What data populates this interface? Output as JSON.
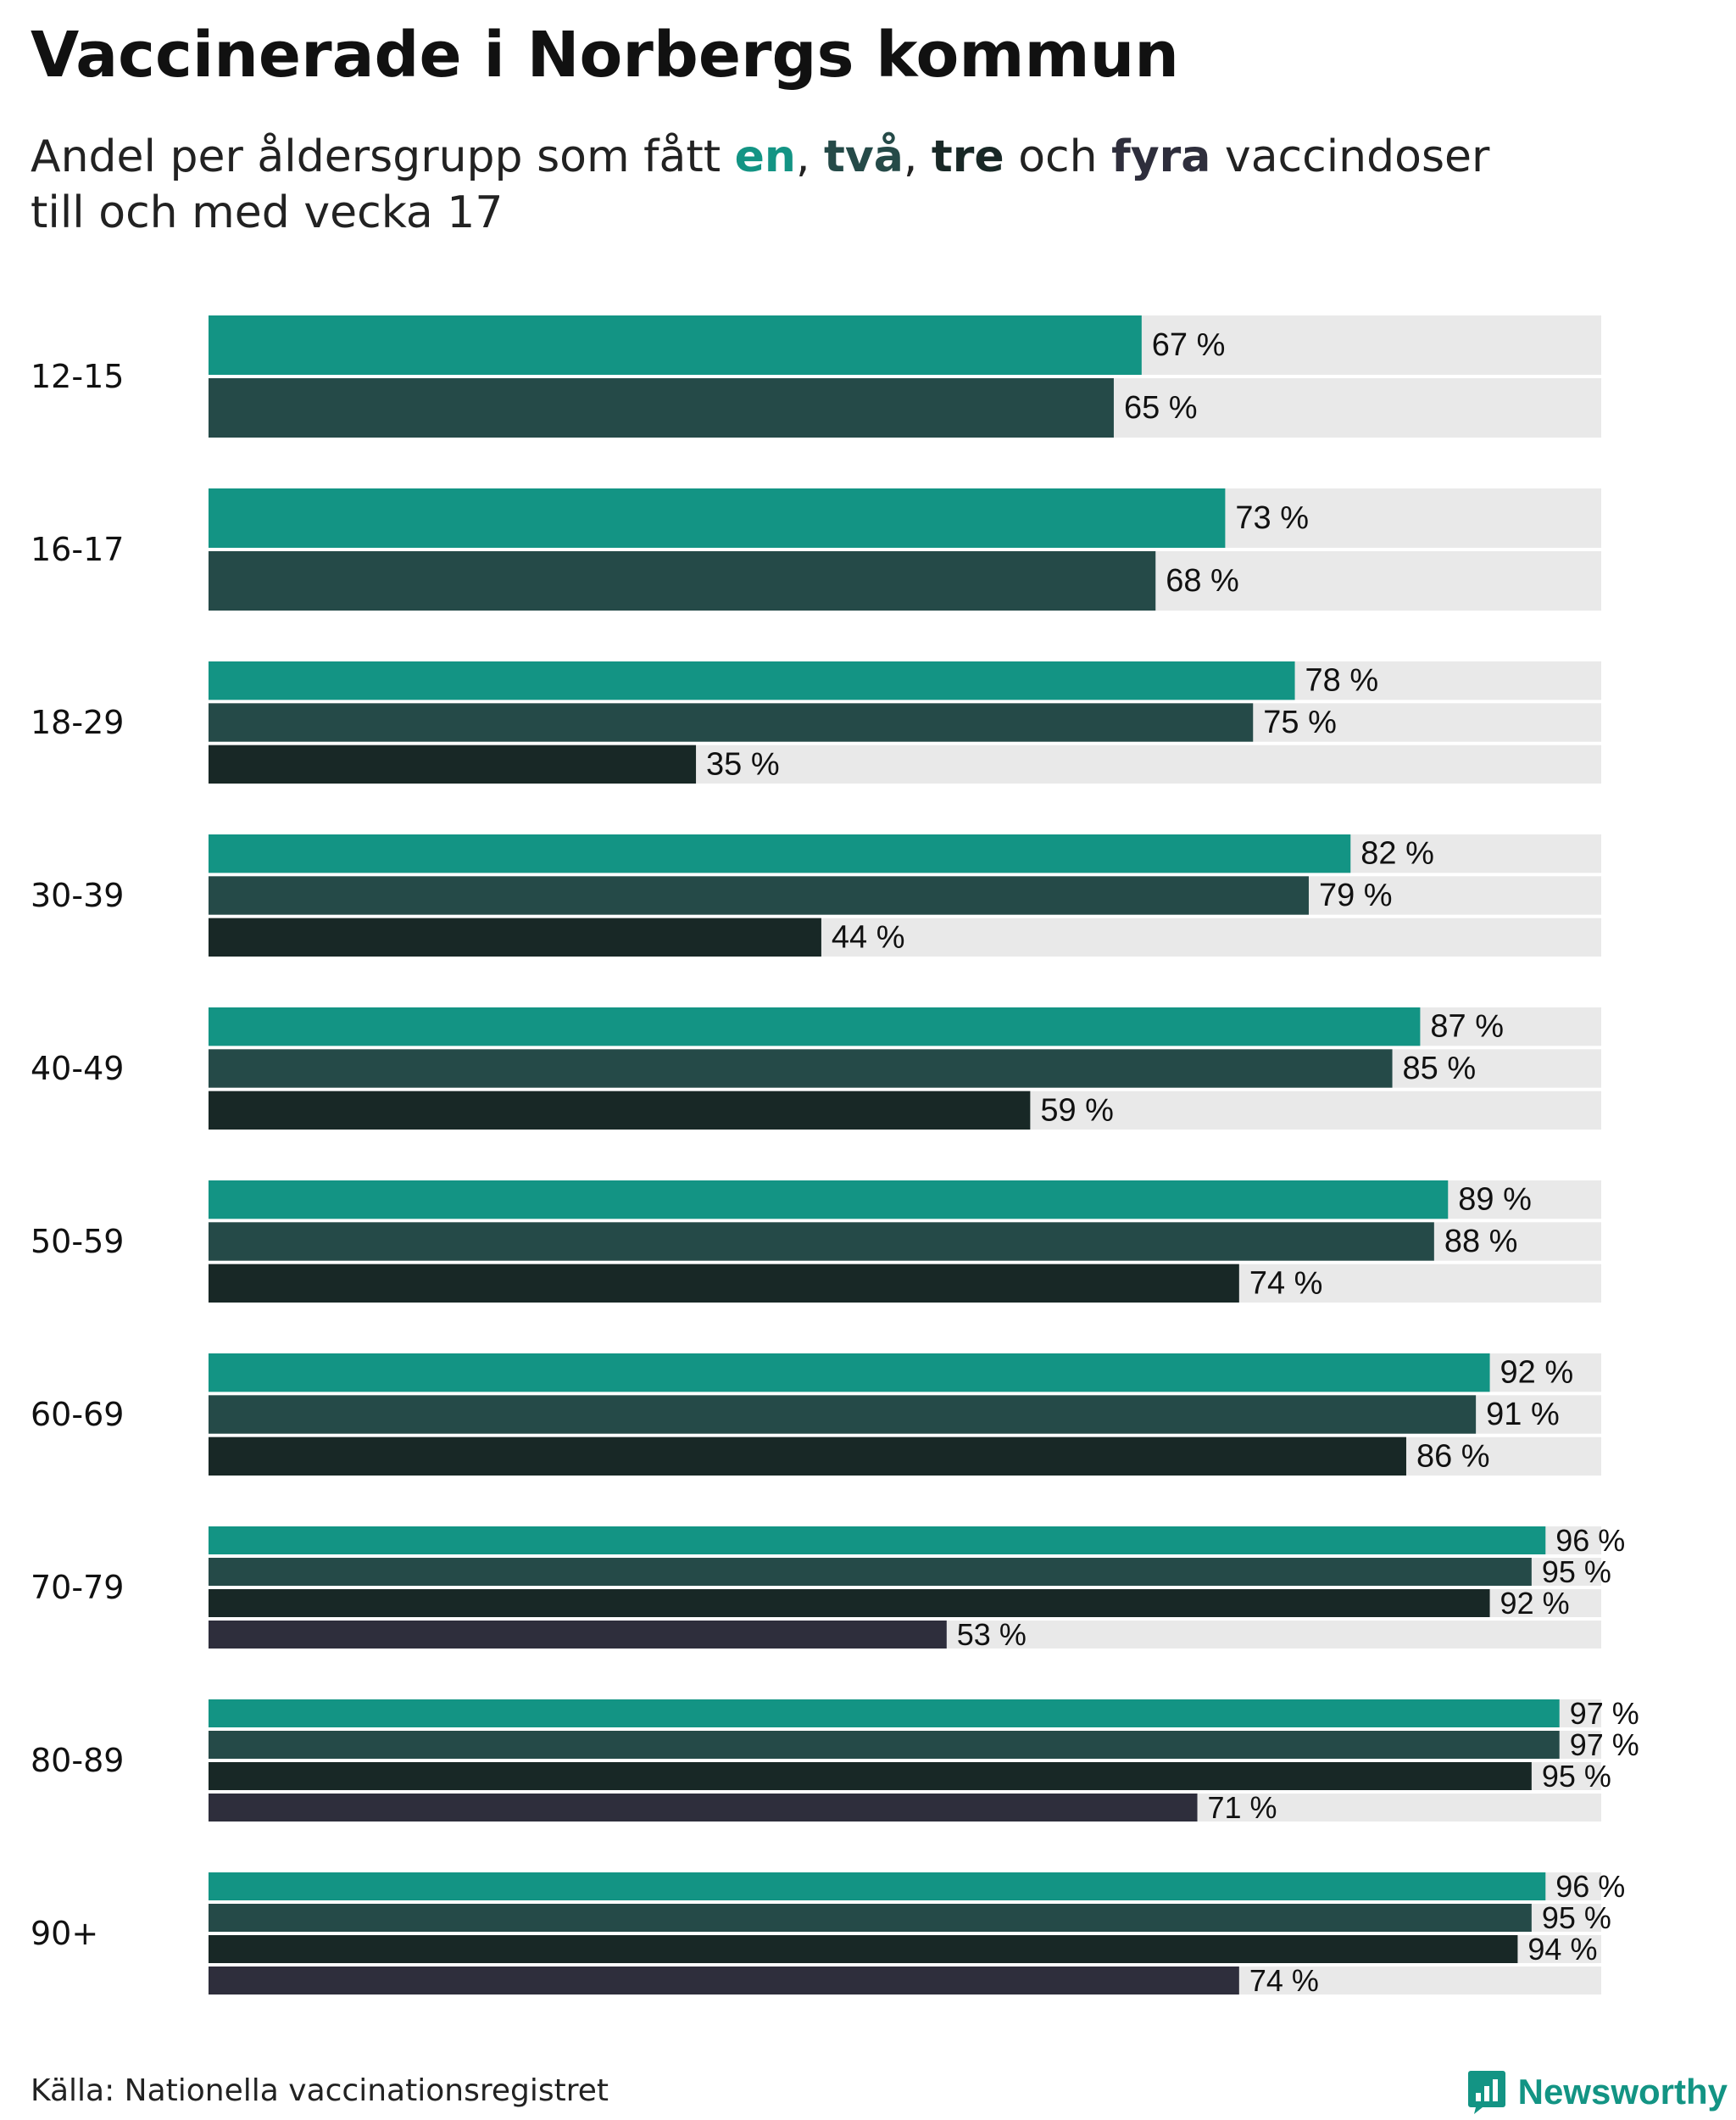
{
  "title": "Vaccinerade i Norbergs kommun",
  "subtitle": {
    "prefix": "Andel per åldersgrupp som fått ",
    "dose1": "en",
    "sep1": ", ",
    "dose2": "två",
    "sep2": ", ",
    "dose3": "tre",
    "mid": " och ",
    "dose4": "fyra",
    "suffix_line1": " vaccindoser",
    "line2": "till och med vecka 17"
  },
  "colors": {
    "dose1": "#139484",
    "dose2": "#254a48",
    "dose3": "#182826",
    "dose4": "#2e2e3c",
    "track": "#e9e9e9",
    "text": "#111111"
  },
  "chart_data": {
    "type": "bar",
    "orientation": "horizontal",
    "title": "Vaccinerade i Norbergs kommun",
    "subtitle": "Andel per åldersgrupp som fått en, två, tre och fyra vaccindoser till och med vecka 17",
    "xlim": [
      0,
      100
    ],
    "unit": "%",
    "grid": false,
    "categories": [
      "12-15",
      "16-17",
      "18-29",
      "30-39",
      "40-49",
      "50-59",
      "60-69",
      "70-79",
      "80-89",
      "90+"
    ],
    "series": [
      {
        "name": "en",
        "values": [
          67,
          73,
          78,
          82,
          87,
          89,
          92,
          96,
          97,
          96
        ]
      },
      {
        "name": "två",
        "values": [
          65,
          68,
          75,
          79,
          85,
          88,
          91,
          95,
          97,
          95
        ]
      },
      {
        "name": "tre",
        "values": [
          null,
          null,
          35,
          44,
          59,
          74,
          86,
          92,
          95,
          94
        ]
      },
      {
        "name": "fyra",
        "values": [
          null,
          null,
          null,
          null,
          null,
          null,
          null,
          53,
          71,
          74
        ]
      }
    ]
  },
  "source": "Källa: Nationella vaccinationsregistret",
  "brand": "Newsworthy"
}
